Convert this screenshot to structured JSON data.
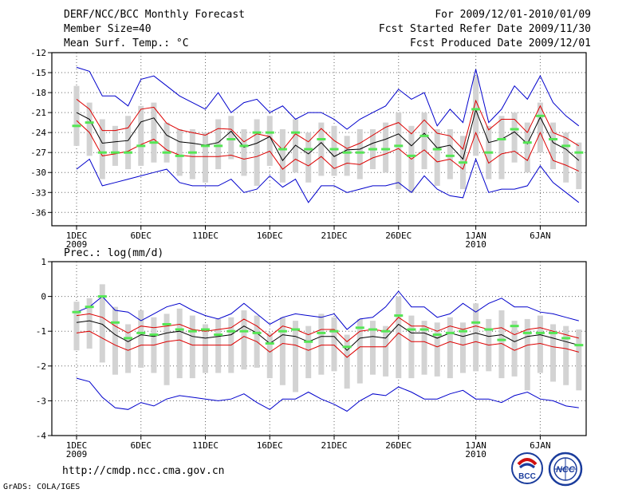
{
  "header": {
    "title": "DERF/NCC/BCC Monthly Forecast",
    "member_size": "Member Size=40",
    "variable": "Mean Surf. Temp.: °C",
    "period": "For 2009/12/01-2010/01/09",
    "started": "Fcst Started Refer Date 2009/11/30",
    "produced": "Fcst Produced Date 2009/12/01"
  },
  "footer": {
    "url": "http://cmdp.ncc.cma.gov.cn",
    "credit": "GrADS: COLA/IGES",
    "logo_bcc": "BCC",
    "logo_ncc": "NCC"
  },
  "colors": {
    "max_min": "#0000cc",
    "spread": "#dd0000",
    "mean": "#000000",
    "box": "#d3d3d3",
    "median": "#55e655",
    "frame": "#000000",
    "grid": "#666666"
  },
  "chart_data": [
    {
      "type": "box",
      "title": "Mean Surf. Temp.: °C",
      "x_tick_labels": [
        "1DEC",
        "6DEC",
        "11DEC",
        "16DEC",
        "21DEC",
        "26DEC",
        "1JAN",
        "6JAN"
      ],
      "x_tick_days": [
        1,
        6,
        11,
        16,
        21,
        26,
        32,
        37
      ],
      "x_year_labels": [
        {
          "day": 1,
          "label": "2009"
        },
        {
          "day": 32,
          "label": "2010"
        }
      ],
      "days": [
        1,
        2,
        3,
        4,
        5,
        6,
        7,
        8,
        9,
        10,
        11,
        12,
        13,
        14,
        15,
        16,
        17,
        18,
        19,
        20,
        21,
        22,
        23,
        24,
        25,
        26,
        27,
        28,
        29,
        30,
        31,
        32,
        33,
        34,
        35,
        36,
        37,
        38,
        39,
        40
      ],
      "ylim": [
        -38,
        -12
      ],
      "yticks": [
        -36,
        -33,
        -30,
        -27,
        -24,
        -21,
        -18,
        -15,
        -12
      ],
      "series": [
        {
          "name": "max",
          "values": [
            -14.2,
            -14.8,
            -18.5,
            -18.5,
            -20,
            -16,
            -15.5,
            -17,
            -18.5,
            -19.5,
            -20.5,
            -18,
            -21,
            -19.5,
            -19,
            -21,
            -20,
            -22,
            -21,
            -21,
            -22,
            -23.5,
            -22,
            -21,
            -20,
            -17.5,
            -19,
            -18,
            -23,
            -20.5,
            -22.5,
            -14.5,
            -22.5,
            -20.5,
            -17,
            -19,
            -15.5,
            -19.5,
            -21.5,
            -23
          ]
        },
        {
          "name": "upper",
          "values": [
            -19,
            -20.5,
            -23.7,
            -23.7,
            -23.3,
            -20.5,
            -20.2,
            -22.6,
            -23.6,
            -24,
            -24.4,
            -23.4,
            -23.5,
            -25.4,
            -24.2,
            -24.6,
            -26.6,
            -24.2,
            -25.4,
            -23.4,
            -25.2,
            -26.4,
            -25.6,
            -24.4,
            -23.2,
            -22.5,
            -24.2,
            -22.1,
            -24.1,
            -24.5,
            -26.5,
            -19.2,
            -23.6,
            -22,
            -22,
            -24,
            -20,
            -24,
            -24.8,
            -26
          ]
        },
        {
          "name": "mean",
          "values": [
            -21,
            -22,
            -25.6,
            -25.4,
            -25.2,
            -22.4,
            -21.8,
            -24.4,
            -25.4,
            -25.6,
            -25.9,
            -25.5,
            -23.8,
            -26.2,
            -25.6,
            -24.6,
            -28.2,
            -25.9,
            -27.2,
            -25.5,
            -27.6,
            -26.6,
            -26.5,
            -25.6,
            -25,
            -24.2,
            -26,
            -24.1,
            -26.3,
            -25.9,
            -28,
            -20.6,
            -25.5,
            -25,
            -23.9,
            -25.7,
            -21.7,
            -25.5,
            -26.5,
            -28.2
          ]
        },
        {
          "name": "lower",
          "values": [
            -22.2,
            -24,
            -27.5,
            -27.2,
            -26.8,
            -25.8,
            -25,
            -26.6,
            -27.4,
            -27.6,
            -27.6,
            -27.6,
            -27.4,
            -28,
            -27.6,
            -26.8,
            -29.5,
            -28,
            -29,
            -27.6,
            -29.4,
            -28.6,
            -28.8,
            -27.8,
            -27.2,
            -26.4,
            -28,
            -26.6,
            -28.4,
            -28,
            -29.5,
            -24,
            -28.6,
            -27.2,
            -26.8,
            -28.2,
            -24,
            -28.2,
            -28.9,
            -29.8
          ]
        },
        {
          "name": "min",
          "values": [
            -29.5,
            -28,
            -32,
            -31.5,
            -31,
            -30.5,
            -30,
            -29.5,
            -31.5,
            -32,
            -32,
            -32,
            -31,
            -33,
            -32.5,
            -30.5,
            -32.2,
            -31,
            -34.5,
            -32,
            -32,
            -33,
            -32.5,
            -32,
            -32,
            -31.5,
            -33,
            -30.5,
            -32.5,
            -33.5,
            -33.8,
            -28,
            -33,
            -32.5,
            -32.5,
            -32,
            -29,
            -31.5,
            -33,
            -34.5
          ]
        },
        {
          "name": "box_low",
          "values": [
            -26,
            -27.5,
            -31,
            -29,
            -29.5,
            -29,
            -28.5,
            -28.5,
            -30.5,
            -31,
            -31.5,
            -29.5,
            -28,
            -30.5,
            -32,
            -29,
            -31.5,
            -30,
            -31.5,
            -30.5,
            -30.5,
            -30.5,
            -31,
            -29.5,
            -30,
            -32.5,
            -33,
            -29.5,
            -32,
            -31,
            -32.5,
            -27.5,
            -31,
            -31,
            -28.5,
            -30,
            -27,
            -29.5,
            -31.5,
            -32.5
          ]
        },
        {
          "name": "box_high",
          "values": [
            -17,
            -19.5,
            -22,
            -23,
            -21.5,
            -20,
            -19.5,
            -22.5,
            -23.5,
            -23.5,
            -24,
            -22,
            -21.5,
            -23.5,
            -22,
            -21.5,
            -23.5,
            -22,
            -24,
            -22.5,
            -23,
            -24.5,
            -23.5,
            -23.5,
            -22.5,
            -21,
            -23,
            -21,
            -23.5,
            -23.5,
            -24.5,
            -15.5,
            -23,
            -21.5,
            -21,
            -22.5,
            -19.5,
            -22.5,
            -24,
            -25.5
          ]
        },
        {
          "name": "median",
          "values": [
            -23,
            -22.5,
            -27,
            -27,
            -27,
            -26,
            -25.5,
            -27,
            -27.5,
            -27,
            -26,
            -26,
            -25,
            -26,
            -24,
            -24,
            -26.5,
            -24,
            -26.5,
            -25,
            -26.5,
            -27,
            -27,
            -26.5,
            -26.5,
            -26,
            -27.5,
            -24.5,
            -26.5,
            -27.5,
            -28.5,
            -20.5,
            -27,
            -25,
            -23.5,
            -25.5,
            -21.5,
            -25,
            -26,
            -27
          ]
        }
      ]
    },
    {
      "type": "box",
      "title": "Prec.: log(mm/d)",
      "x_tick_labels": [
        "1DEC",
        "6DEC",
        "11DEC",
        "16DEC",
        "21DEC",
        "26DEC",
        "1JAN",
        "6JAN"
      ],
      "x_tick_days": [
        1,
        6,
        11,
        16,
        21,
        26,
        32,
        37
      ],
      "x_year_labels": [
        {
          "day": 1,
          "label": "2009"
        },
        {
          "day": 32,
          "label": "2010"
        }
      ],
      "days": [
        1,
        2,
        3,
        4,
        5,
        6,
        7,
        8,
        9,
        10,
        11,
        12,
        13,
        14,
        15,
        16,
        17,
        18,
        19,
        20,
        21,
        22,
        23,
        24,
        25,
        26,
        27,
        28,
        29,
        30,
        31,
        32,
        33,
        34,
        35,
        36,
        37,
        38,
        39,
        40
      ],
      "ylim": [
        -4,
        1
      ],
      "yticks": [
        -4,
        -3,
        -2,
        -1,
        0,
        1
      ],
      "series": [
        {
          "name": "max",
          "values": [
            -0.45,
            -0.3,
            0,
            -0.4,
            -0.45,
            -0.7,
            -0.5,
            -0.3,
            -0.2,
            -0.4,
            -0.55,
            -0.65,
            -0.5,
            -0.2,
            -0.5,
            -0.8,
            -0.6,
            -0.5,
            -0.55,
            -0.6,
            -0.5,
            -0.95,
            -0.65,
            -0.6,
            -0.3,
            0.15,
            -0.3,
            -0.3,
            -0.6,
            -0.5,
            -0.2,
            -0.45,
            -0.2,
            -0.05,
            -0.3,
            -0.3,
            -0.45,
            -0.5,
            -0.6,
            -0.7
          ]
        },
        {
          "name": "upper",
          "values": [
            -0.55,
            -0.5,
            -0.6,
            -0.85,
            -1.05,
            -0.85,
            -0.9,
            -0.85,
            -0.8,
            -0.95,
            -1,
            -0.95,
            -0.9,
            -0.65,
            -0.85,
            -1.15,
            -0.85,
            -0.95,
            -1.1,
            -0.95,
            -0.95,
            -1.3,
            -1,
            -0.95,
            -1,
            -0.6,
            -0.85,
            -0.85,
            -1,
            -0.85,
            -0.95,
            -0.85,
            -0.95,
            -0.9,
            -1.1,
            -0.95,
            -0.9,
            -1,
            -1.1,
            -1.2
          ]
        },
        {
          "name": "mean",
          "values": [
            -0.75,
            -0.7,
            -0.8,
            -1.1,
            -1.3,
            -1.1,
            -1.15,
            -1.05,
            -1,
            -1.15,
            -1.2,
            -1.15,
            -1.1,
            -0.85,
            -1.05,
            -1.35,
            -1.1,
            -1.15,
            -1.3,
            -1.15,
            -1.15,
            -1.55,
            -1.2,
            -1.15,
            -1.2,
            -0.8,
            -1.05,
            -1.05,
            -1.2,
            -1.05,
            -1.15,
            -1.05,
            -1.15,
            -1.1,
            -1.3,
            -1.15,
            -1.1,
            -1.2,
            -1.3,
            -1.4
          ]
        },
        {
          "name": "lower",
          "values": [
            -1.05,
            -1,
            -1.2,
            -1.4,
            -1.55,
            -1.4,
            -1.4,
            -1.3,
            -1.25,
            -1.4,
            -1.4,
            -1.4,
            -1.4,
            -1.15,
            -1.3,
            -1.6,
            -1.35,
            -1.4,
            -1.55,
            -1.4,
            -1.4,
            -1.75,
            -1.45,
            -1.45,
            -1.45,
            -1.05,
            -1.3,
            -1.3,
            -1.45,
            -1.3,
            -1.4,
            -1.3,
            -1.4,
            -1.35,
            -1.55,
            -1.4,
            -1.35,
            -1.45,
            -1.5,
            -1.6
          ]
        },
        {
          "name": "min",
          "values": [
            -2.35,
            -2.45,
            -2.9,
            -3.2,
            -3.25,
            -3.05,
            -3.15,
            -2.95,
            -2.85,
            -2.9,
            -2.95,
            -3,
            -2.95,
            -2.8,
            -3.05,
            -3.25,
            -2.95,
            -2.95,
            -2.75,
            -2.95,
            -3.1,
            -3.3,
            -3,
            -2.8,
            -2.85,
            -2.6,
            -2.75,
            -2.95,
            -2.95,
            -2.8,
            -2.7,
            -2.95,
            -2.95,
            -3.05,
            -2.85,
            -2.75,
            -2.95,
            -3,
            -3.15,
            -3.2
          ]
        },
        {
          "name": "box_low",
          "values": [
            -1.55,
            -1.5,
            -1.9,
            -2.25,
            -2.2,
            -2.05,
            -2.2,
            -2.55,
            -2.35,
            -2.35,
            -2.2,
            -2.2,
            -2.2,
            -2.1,
            -2.05,
            -2.35,
            -2.55,
            -2.75,
            -2.35,
            -2.25,
            -2.15,
            -2.65,
            -2.5,
            -2.25,
            -2.3,
            -2.35,
            -2.35,
            -2.25,
            -2.3,
            -2.35,
            -2.2,
            -2.15,
            -2.15,
            -2.35,
            -2.3,
            -2.7,
            -2.2,
            -2.45,
            -2.55,
            -2.7
          ]
        },
        {
          "name": "box_high",
          "values": [
            -0.15,
            -0.05,
            0.35,
            -0.3,
            -0.8,
            -0.4,
            -0.6,
            -0.5,
            -0.35,
            -0.55,
            -0.8,
            -0.65,
            -0.6,
            -0.4,
            -0.55,
            -1.05,
            -0.6,
            -0.7,
            -0.85,
            -0.5,
            -0.6,
            -1.1,
            -0.65,
            -0.7,
            -0.85,
            0,
            -0.55,
            -0.7,
            -0.75,
            -0.6,
            -0.75,
            -0.2,
            -0.65,
            -0.4,
            -0.7,
            -0.65,
            -0.55,
            -0.8,
            -0.85,
            -0.95
          ]
        },
        {
          "name": "median",
          "values": [
            -0.45,
            -0.3,
            0,
            -0.75,
            -1.2,
            -1.05,
            -1.1,
            -0.8,
            -0.95,
            -1,
            -0.95,
            -1.1,
            -1,
            -1,
            -1.05,
            -1.35,
            -1,
            -0.95,
            -1.3,
            -1.05,
            -1,
            -1.45,
            -0.9,
            -0.95,
            -1,
            -0.55,
            -0.95,
            -0.95,
            -1.1,
            -1.05,
            -1,
            -0.75,
            -0.95,
            -1.25,
            -0.85,
            -1.05,
            -1.05,
            -1.05,
            -1.2,
            -1.4
          ]
        }
      ]
    }
  ]
}
